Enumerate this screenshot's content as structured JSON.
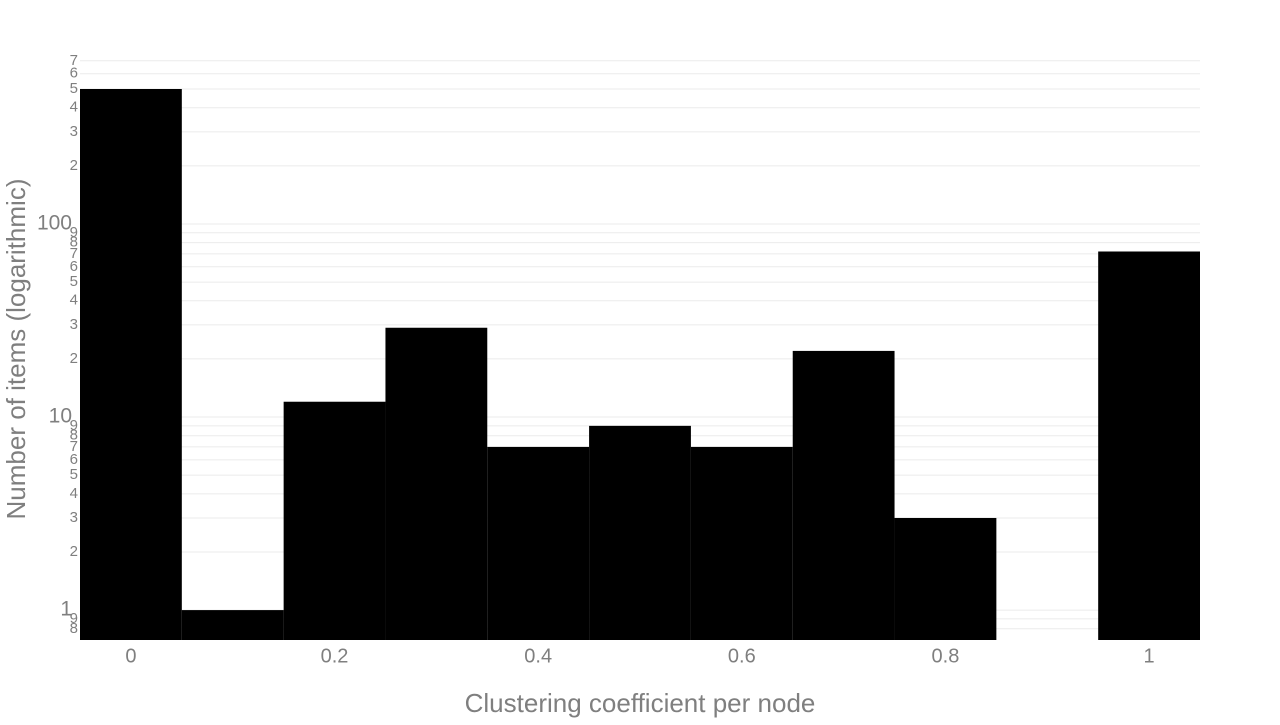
{
  "chart_data": {
    "type": "histogram",
    "x_label": "Clustering coefficient per node",
    "y_label": "Number of items (logarithmic)",
    "bins": [
      -0.05,
      0.05,
      0.15,
      0.25,
      0.35,
      0.45,
      0.55,
      0.65,
      0.75,
      0.85,
      0.95,
      1.05
    ],
    "values": [
      500,
      1,
      12,
      29,
      7,
      9,
      7,
      22,
      3,
      0,
      72
    ],
    "color": "#000000",
    "log_y": true,
    "grid": true,
    "xlim": [
      -0.05,
      1.05
    ],
    "xticks": [
      0,
      0.2,
      0.4,
      0.6,
      0.8,
      1
    ],
    "ylim": [
      0.7,
      750
    ],
    "yticks": [
      {
        "value": 0.8,
        "label": "8"
      },
      {
        "value": 0.9,
        "label": "9"
      },
      1,
      2,
      3,
      4,
      5,
      6,
      7,
      8,
      9,
      10,
      {
        "value": 20,
        "label": "2"
      },
      {
        "value": 30,
        "label": "3"
      },
      {
        "value": 40,
        "label": "4"
      },
      {
        "value": 50,
        "label": "5"
      },
      {
        "value": 60,
        "label": "6"
      },
      {
        "value": 70,
        "label": "7"
      },
      {
        "value": 80,
        "label": "8"
      },
      {
        "value": 90,
        "label": "9"
      },
      100,
      {
        "value": 200,
        "label": "2"
      },
      {
        "value": 300,
        "label": "3"
      },
      {
        "value": 400,
        "label": "4"
      },
      {
        "value": 500,
        "label": "5"
      },
      {
        "value": 600,
        "label": "6"
      },
      {
        "value": 700,
        "label": "7"
      }
    ]
  }
}
